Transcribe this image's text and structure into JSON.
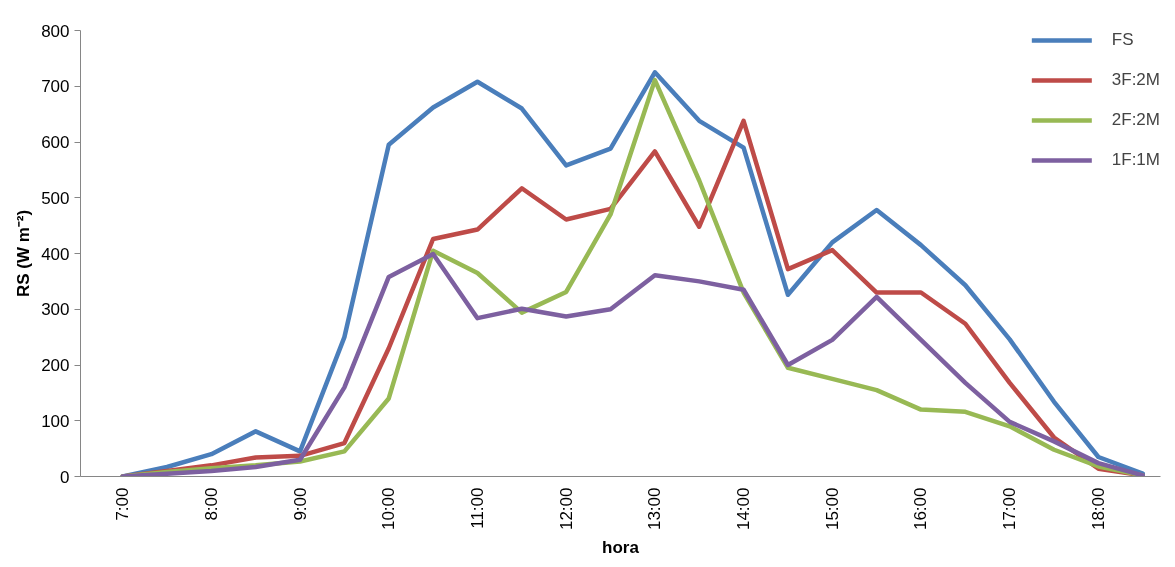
{
  "chart_data": {
    "type": "line",
    "xlabel": "hora",
    "ylabel": "RS (W m⁻²)",
    "categories": [
      "7:00",
      null,
      "8:00",
      null,
      "9:00",
      null,
      "10:00",
      null,
      "11:00",
      null,
      "12:00",
      null,
      "13:00",
      null,
      "14:00",
      null,
      "15:00",
      null,
      "16:00",
      null,
      "17:00",
      null,
      "18:00",
      null
    ],
    "series": [
      {
        "name": "FS",
        "color": "#4a7ebb",
        "values": [
          0,
          17,
          40,
          81,
          45,
          250,
          595,
          662,
          708,
          660,
          558,
          588,
          725,
          638,
          590,
          326,
          420,
          478,
          415,
          343,
          246,
          134,
          35,
          5
        ]
      },
      {
        "name": "3F:2M",
        "color": "#be4b48",
        "values": [
          0,
          10,
          20,
          34,
          37,
          60,
          230,
          426,
          443,
          517,
          461,
          480,
          583,
          448,
          638,
          372,
          406,
          330,
          330,
          274,
          168,
          70,
          14,
          2
        ]
      },
      {
        "name": "2F:2M",
        "color": "#98b954",
        "values": [
          0,
          8,
          15,
          20,
          27,
          45,
          140,
          405,
          365,
          294,
          331,
          470,
          711,
          531,
          330,
          195,
          175,
          155,
          120,
          116,
          90,
          48,
          18,
          2
        ]
      },
      {
        "name": "1F:1M",
        "color": "#7d60a0",
        "values": [
          0,
          5,
          10,
          17,
          30,
          160,
          358,
          399,
          284,
          301,
          287,
          300,
          361,
          350,
          335,
          200,
          245,
          322,
          245,
          168,
          98,
          63,
          24,
          2
        ]
      }
    ],
    "ylim": [
      0,
      800
    ],
    "yticks": [
      0,
      100,
      200,
      300,
      400,
      500,
      600,
      700,
      800
    ],
    "grid": false,
    "legend": "top right",
    "marker": "none",
    "line_style": "solid"
  }
}
